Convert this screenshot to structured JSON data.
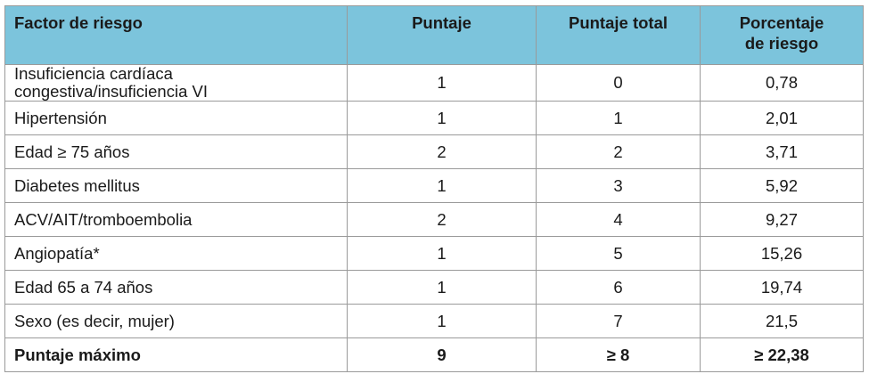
{
  "table": {
    "headers": {
      "factor": "Factor de riesgo",
      "puntaje": "Puntaje",
      "puntaje_total": "Puntaje total",
      "porcentaje_line1": "Porcentaje",
      "porcentaje_line2": "de riesgo"
    },
    "rows": [
      {
        "factor": "Insuficiencia cardíaca congestiva/insuficiencia VI",
        "puntaje": "1",
        "puntaje_total": "0",
        "porcentaje": "0,78"
      },
      {
        "factor": "Hipertensión",
        "puntaje": "1",
        "puntaje_total": "1",
        "porcentaje": "2,01"
      },
      {
        "factor": "Edad ≥ 75 años",
        "puntaje": "2",
        "puntaje_total": "2",
        "porcentaje": "3,71"
      },
      {
        "factor": "Diabetes mellitus",
        "puntaje": "1",
        "puntaje_total": "3",
        "porcentaje": "5,92"
      },
      {
        "factor": "ACV/AIT/tromboembolia",
        "puntaje": "2",
        "puntaje_total": "4",
        "porcentaje": "9,27"
      },
      {
        "factor": "Angiopatía*",
        "puntaje": "1",
        "puntaje_total": "5",
        "porcentaje": "15,26"
      },
      {
        "factor": "Edad 65 a 74 años",
        "puntaje": "1",
        "puntaje_total": "6",
        "porcentaje": "19,74"
      },
      {
        "factor": "Sexo (es decir, mujer)",
        "puntaje": "1",
        "puntaje_total": "7",
        "porcentaje": "21,5"
      }
    ],
    "total_row": {
      "factor": "Puntaje máximo",
      "puntaje": "9",
      "puntaje_total": "≥ 8",
      "porcentaje": "≥ 22,38"
    },
    "colors": {
      "header_bg": "#7cc4dc",
      "border": "#9a9a9a"
    }
  }
}
